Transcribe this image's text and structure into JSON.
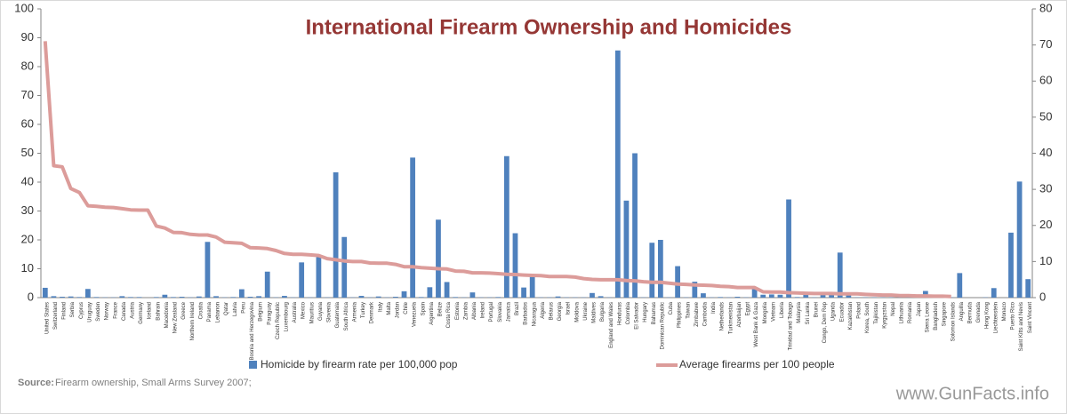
{
  "chart_data": {
    "type": "bar_line",
    "title": "International Firearm Ownership and Homicides",
    "categories": [
      "United States",
      "Switzerland",
      "Finland",
      "Serbia",
      "Cyprus",
      "Uruguay",
      "Sweden",
      "Norway",
      "France",
      "Canada",
      "Austria",
      "Germany",
      "Iceland",
      "Bahrain",
      "Macedonia",
      "New Zealand",
      "Greece",
      "Northern Ireland",
      "Croatia",
      "Panama",
      "Lebanon",
      "Qatar",
      "Latvia",
      "Peru",
      "Bosnia and Herzegovina",
      "Belgium",
      "Paraguay",
      "Czech Republic",
      "Luxembourg",
      "Australia",
      "Mexico",
      "Mauritius",
      "Guyana",
      "Slovenia",
      "Guatemala",
      "South Africa",
      "Armenia",
      "Turkey",
      "Denmark",
      "Italy",
      "Malta",
      "Jordan",
      "Chile",
      "Venezuela",
      "Spain",
      "Argentina",
      "Belize",
      "Costa Rica",
      "Estonia",
      "Zambia",
      "Albania",
      "Ireland",
      "Portugal",
      "Slovakia",
      "Jamaica",
      "Brazil",
      "Barbados",
      "Nicaragua",
      "Algeria",
      "Belarus",
      "Georgia",
      "Israel",
      "Moldova",
      "Ukraine",
      "Maldives",
      "Bulgaria",
      "England and Wales",
      "Honduras",
      "Colombia",
      "El Salvador",
      "Hungary",
      "Bahamas",
      "Dominican Republic",
      "Cuba",
      "Philippines",
      "Taiwan",
      "Zimbabwe",
      "Cambodia",
      "India",
      "Netherlands",
      "Turkmenistan",
      "Azerbaijan",
      "Egypt",
      "West Bank & Gaza",
      "Mongolia",
      "Vietnam",
      "Liberia",
      "Trinidad and Tobago",
      "Malaysia",
      "Sri Lanka",
      "Brunei",
      "Congo, Dem Rep",
      "Uganda",
      "Ecuador",
      "Kazakhstan",
      "Poland",
      "Korea, South",
      "Tajikistan",
      "Kyrgyzstan",
      "Nepal",
      "Lithuania",
      "Romania",
      "Japan",
      "Sierra Leone",
      "Bangladesh",
      "Singapore",
      "Solomon Islands",
      "Anguilla",
      "Bermuda",
      "Grenada",
      "Hong Kong",
      "Liechtenstein",
      "Monaco",
      "Puerto Rico",
      "Saint Kitts and Nevis",
      "Saint Vincent"
    ],
    "series": [
      {
        "name": "Homicide by firearm rate per 100,000 pop",
        "color": "#4f81bd",
        "values": [
          3.4,
          0.5,
          0.3,
          0.4,
          0.2,
          3,
          0.2,
          0.1,
          0.1,
          0.5,
          0.2,
          0.2,
          0,
          0.2,
          1,
          0.2,
          0.3,
          0.1,
          0.4,
          19.3,
          0.5,
          0.1,
          0.2,
          2.9,
          0.3,
          0.5,
          9,
          0.1,
          0.6,
          0.1,
          12.2,
          0.1,
          14,
          0.1,
          43.4,
          21,
          0.1,
          0.6,
          0.1,
          0.4,
          0.1,
          0.3,
          2.2,
          48.5,
          0.2,
          3.6,
          27,
          5.4,
          0.2,
          0.1,
          1.8,
          0.1,
          0.1,
          0.2,
          49,
          22.3,
          3.5,
          7.2,
          0.1,
          0.1,
          0.4,
          0.1,
          0.1,
          0.1,
          1.6,
          0.5,
          0.1,
          85.6,
          33.6,
          50,
          0.1,
          19,
          20,
          0.1,
          10.9,
          0.1,
          5.5,
          1.5,
          0.1,
          0.2,
          0.1,
          0.3,
          0.1,
          3,
          1,
          1.1,
          1,
          34,
          0.2,
          1.5,
          0.1,
          1.5,
          1.5,
          15.6,
          1.5,
          0.1,
          0.1,
          0.1,
          0.1,
          0.1,
          0.1,
          0.1,
          0.1,
          2.3,
          1,
          0.1,
          0.1,
          8.5,
          0,
          0,
          0.1,
          3.3,
          0,
          22.5,
          40.2,
          6.4
        ]
      },
      {
        "name": "Average firearms per 100 people",
        "color": "#dc9c9a",
        "values": [
          88.8,
          45.7,
          45.3,
          37.8,
          36.4,
          31.8,
          31.6,
          31.3,
          31.2,
          30.8,
          30.4,
          30.3,
          30.3,
          24.8,
          24.1,
          22.6,
          22.5,
          21.9,
          21.7,
          21.7,
          21,
          19.2,
          19,
          18.8,
          17.3,
          17.2,
          17,
          16.3,
          15.3,
          15,
          15,
          14.8,
          14.6,
          13.5,
          13.1,
          12.7,
          12.5,
          12.5,
          12,
          11.9,
          11.9,
          11.5,
          10.7,
          10.7,
          10.4,
          10.2,
          10,
          9.9,
          9.2,
          9.1,
          8.6,
          8.6,
          8.5,
          8.3,
          8.1,
          8,
          7.8,
          7.7,
          7.6,
          7.3,
          7.3,
          7.3,
          7.1,
          6.6,
          6.3,
          6.2,
          6.2,
          6.2,
          5.9,
          5.8,
          5.5,
          5.3,
          5.3,
          5,
          4.7,
          4.6,
          4.4,
          4.3,
          4.2,
          3.9,
          3.8,
          3.5,
          3.5,
          3.5,
          2,
          1.9,
          1.9,
          1.7,
          1.6,
          1.5,
          1.4,
          1.4,
          1.4,
          1.3,
          1.3,
          1.3,
          1.1,
          1,
          0.9,
          0.9,
          0.7,
          0.7,
          0.6,
          0.6,
          0.5,
          0.5,
          0.4,
          null,
          null,
          null,
          null,
          null,
          null,
          null,
          null,
          null
        ]
      }
    ],
    "ylim": [
      0,
      100
    ],
    "yticks": [
      0,
      10,
      20,
      30,
      40,
      50,
      60,
      70,
      80,
      90,
      100
    ],
    "y2lim": [
      0,
      80
    ],
    "y2ticks": [
      0,
      10,
      20,
      30,
      40,
      50,
      60,
      70,
      80
    ],
    "source_label": "Source:",
    "source_text": "Firearm ownership, Small Arms Survey 2007;",
    "watermark": "www.GunFacts.info"
  }
}
